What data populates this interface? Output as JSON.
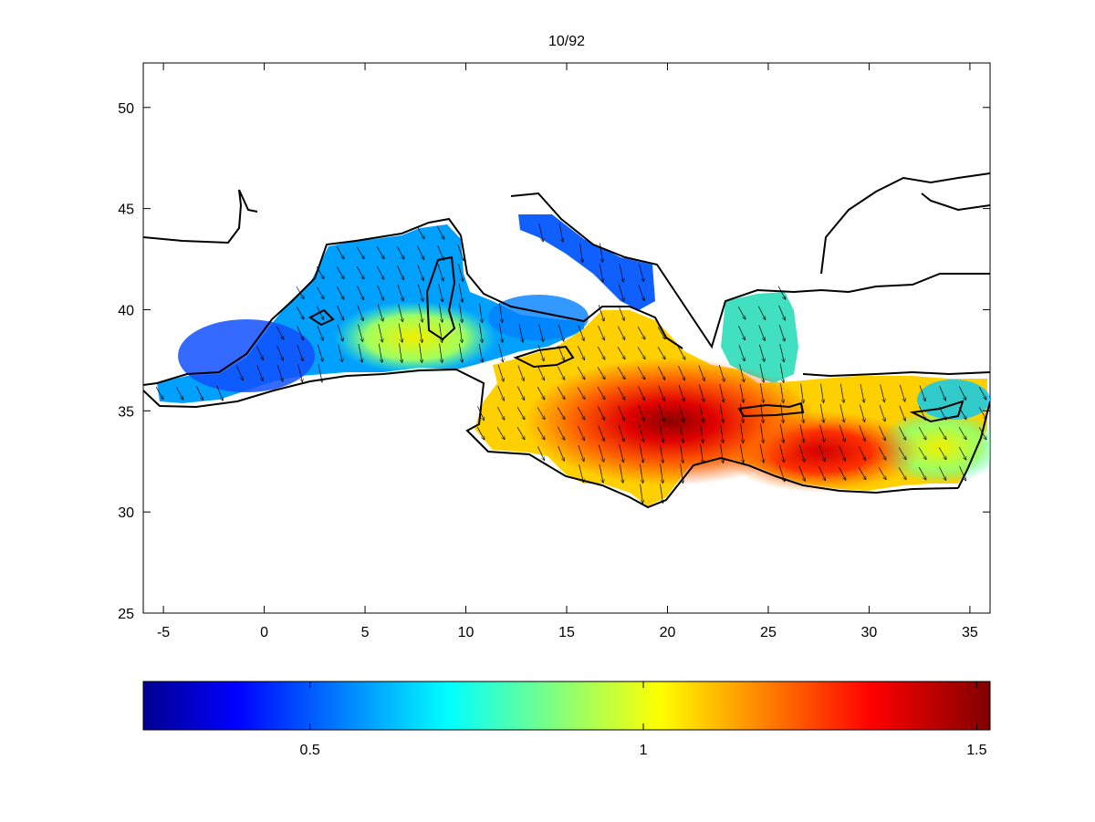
{
  "title": "10/92",
  "map": {
    "xlim": [
      -6,
      36
    ],
    "ylim": [
      25,
      52.2
    ],
    "xticks": [
      "-5",
      "0",
      "5",
      "10",
      "15",
      "20",
      "25",
      "30",
      "35"
    ],
    "xtick_values": [
      -5,
      0,
      5,
      10,
      15,
      20,
      25,
      30,
      35
    ],
    "yticks": [
      "25",
      "30",
      "35",
      "40",
      "45",
      "50"
    ],
    "ytick_values": [
      25,
      30,
      35,
      40,
      45,
      50
    ],
    "field": "scalar magnitude with direction arrows over the Mediterranean Sea",
    "colormap": "jet",
    "high_spot": {
      "lon": 20.5,
      "lat": 34.0,
      "value": 1.5
    },
    "arrow_direction": "toward south-east"
  },
  "colorbar": {
    "range": [
      0.25,
      1.52
    ],
    "ticks": [
      "0.5",
      "1",
      "1.5"
    ],
    "tick_values": [
      0.5,
      1.0,
      1.5
    ],
    "colors": [
      "#00008f",
      "#0000ff",
      "#00ffff",
      "#ffff00",
      "#ff0000",
      "#800000"
    ]
  },
  "colors": {
    "coast": "#000000",
    "background": "#ffffff"
  }
}
